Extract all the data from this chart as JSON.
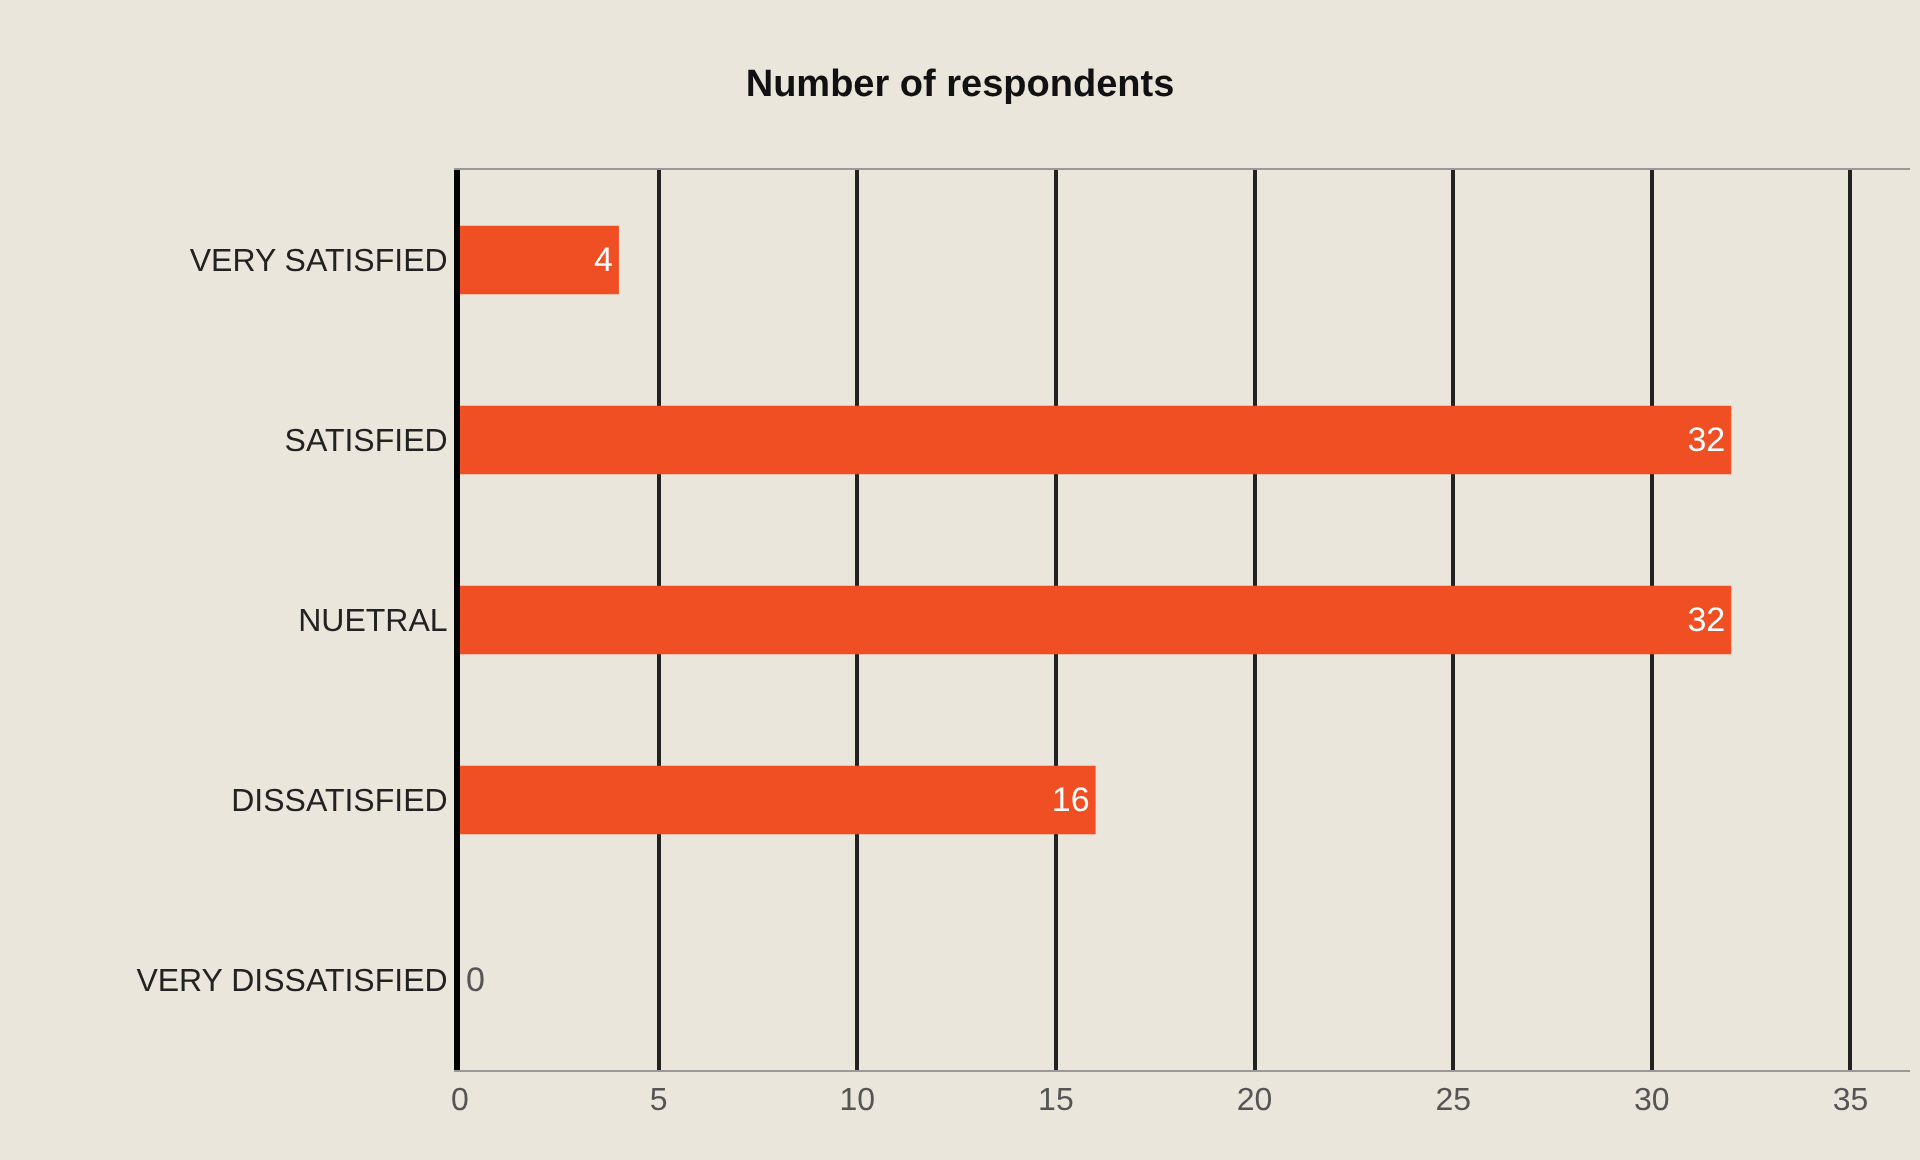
{
  "chart_data": {
    "type": "bar",
    "orientation": "horizontal",
    "title": "Number of respondents",
    "categories": [
      "VERY SATISFIED",
      "SATISFIED",
      "NUETRAL",
      "DISSATISFIED",
      "VERY DISSATISFIED"
    ],
    "values": [
      4,
      32,
      32,
      16,
      0
    ],
    "color": "#f04e23",
    "data_labels": true,
    "xlim": [
      0,
      36.5
    ],
    "xticks": [
      0,
      5,
      10,
      15,
      20,
      25,
      30,
      35
    ],
    "grid": "x",
    "legend": false
  }
}
